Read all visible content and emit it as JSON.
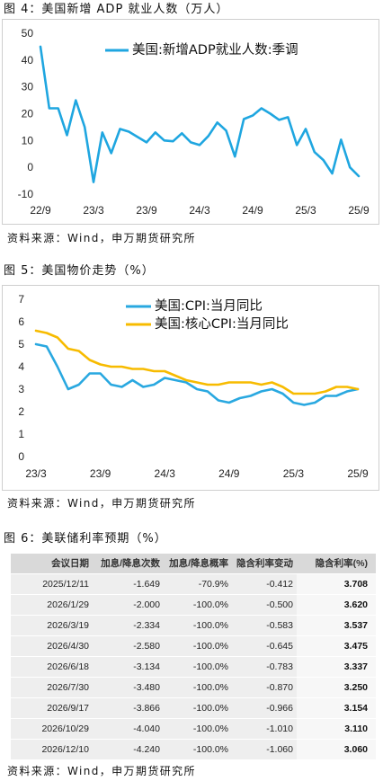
{
  "chart_data": [
    {
      "type": "line",
      "title": "图 4：美国新增 ADP 就业人数（万人）",
      "source": "资料来源：Wind，申万期货研究所",
      "x": [
        "22/9",
        "22/10",
        "22/11",
        "22/12",
        "23/1",
        "23/2",
        "23/3",
        "23/4",
        "23/5",
        "23/6",
        "23/7",
        "23/8",
        "23/9",
        "23/10",
        "23/11",
        "23/12",
        "24/1",
        "24/2",
        "24/3",
        "24/4",
        "24/5",
        "24/6",
        "24/7",
        "24/8",
        "24/9",
        "24/10",
        "24/11",
        "24/12",
        "25/1",
        "25/2",
        "25/3",
        "25/4",
        "25/5",
        "25/6",
        "25/7",
        "25/8",
        "25/9"
      ],
      "xticks": [
        "22/9",
        "23/3",
        "23/9",
        "24/3",
        "24/9",
        "25/3",
        "25/9"
      ],
      "ylim": [
        -10,
        50
      ],
      "yticks": [
        50,
        40,
        30,
        20,
        10,
        0,
        -10
      ],
      "grid": false,
      "legend": "top",
      "series": [
        {
          "name": "美国:新增ADP就业人数:季调",
          "color": "#1fa6e0",
          "values": [
            45,
            22,
            22,
            12,
            25,
            15,
            -5.5,
            13,
            5.3,
            14.3,
            13.3,
            11.3,
            9.3,
            13,
            10,
            9.7,
            12.7,
            9.3,
            8.3,
            11.7,
            16.7,
            13.7,
            4,
            18,
            19.3,
            22,
            20,
            17.7,
            18.7,
            8.3,
            14.3,
            5.7,
            2.7,
            -2.3,
            10.3,
            0,
            -3.3
          ]
        }
      ]
    },
    {
      "type": "line",
      "title": "图 5：美国物价走势（%）",
      "source": "资料来源：Wind，申万期货研究所",
      "x": [
        "23/3",
        "23/4",
        "23/5",
        "23/6",
        "23/7",
        "23/8",
        "23/9",
        "23/10",
        "23/11",
        "23/12",
        "24/1",
        "24/2",
        "24/3",
        "24/4",
        "24/5",
        "24/6",
        "24/7",
        "24/8",
        "24/9",
        "24/10",
        "24/11",
        "24/12",
        "25/1",
        "25/2",
        "25/3",
        "25/4",
        "25/5",
        "25/6",
        "25/7",
        "25/8",
        "25/9"
      ],
      "xticks": [
        "23/3",
        "23/9",
        "24/3",
        "24/9",
        "25/3",
        "25/9"
      ],
      "ylim": [
        0,
        7
      ],
      "yticks": [
        7,
        6,
        5,
        4,
        3,
        2,
        1,
        0
      ],
      "grid": false,
      "legend": "top",
      "series": [
        {
          "name": "美国:CPI:当月同比",
          "color": "#29a8e0",
          "values": [
            5.0,
            4.9,
            4.0,
            3.0,
            3.2,
            3.7,
            3.7,
            3.2,
            3.1,
            3.4,
            3.1,
            3.2,
            3.5,
            3.4,
            3.3,
            3.0,
            2.9,
            2.5,
            2.4,
            2.6,
            2.7,
            2.9,
            3.0,
            2.8,
            2.4,
            2.3,
            2.4,
            2.7,
            2.7,
            2.9,
            3.0
          ]
        },
        {
          "name": "美国:核心CPI:当月同比",
          "color": "#f7bb00",
          "values": [
            5.6,
            5.5,
            5.3,
            4.8,
            4.7,
            4.3,
            4.1,
            4.0,
            4.0,
            3.9,
            3.9,
            3.8,
            3.8,
            3.6,
            3.4,
            3.3,
            3.2,
            3.2,
            3.3,
            3.3,
            3.3,
            3.2,
            3.3,
            3.1,
            2.8,
            2.8,
            2.8,
            2.9,
            3.1,
            3.1,
            3.0
          ]
        }
      ]
    },
    {
      "type": "table",
      "title": "图 6：美联储利率预期（%）",
      "source": "资料来源：Wind，申万期货研究所",
      "columns": [
        "会议日期",
        "加息/降息次数",
        "加息/降息概率",
        "隐含利率变动",
        "隐含利率(%)"
      ],
      "rows": [
        [
          "2025/12/11",
          "-1.649",
          "-70.9%",
          "-0.412",
          "3.708"
        ],
        [
          "2026/1/29",
          "-2.000",
          "-100.0%",
          "-0.500",
          "3.620"
        ],
        [
          "2026/3/19",
          "-2.334",
          "-100.0%",
          "-0.583",
          "3.537"
        ],
        [
          "2026/4/30",
          "-2.580",
          "-100.0%",
          "-0.645",
          "3.475"
        ],
        [
          "2026/6/18",
          "-3.134",
          "-100.0%",
          "-0.783",
          "3.337"
        ],
        [
          "2026/7/30",
          "-3.480",
          "-100.0%",
          "-0.870",
          "3.250"
        ],
        [
          "2026/9/17",
          "-3.866",
          "-100.0%",
          "-0.966",
          "3.154"
        ],
        [
          "2026/10/29",
          "-4.040",
          "-100.0%",
          "-1.010",
          "3.110"
        ],
        [
          "2026/12/10",
          "-4.240",
          "-100.0%",
          "-1.060",
          "3.060"
        ]
      ]
    }
  ]
}
